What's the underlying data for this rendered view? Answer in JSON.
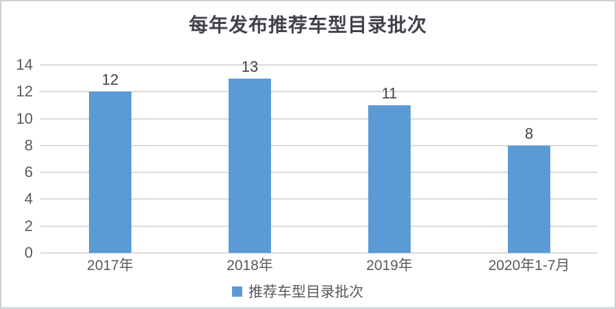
{
  "chart_data": {
    "type": "bar",
    "title": "每年发布推荐车型目录批次",
    "categories": [
      "2017年",
      "2018年",
      "2019年",
      "2020年1-7月"
    ],
    "series": [
      {
        "name": "推荐车型目录批次",
        "values": [
          12,
          13,
          11,
          8
        ]
      }
    ],
    "data_labels": [
      "12",
      "13",
      "11",
      "8"
    ],
    "xlabel": "",
    "ylabel": "",
    "ylim": [
      0,
      14
    ],
    "yticks": [
      0,
      2,
      4,
      6,
      8,
      10,
      12,
      14
    ],
    "grid": true,
    "legend_position": "bottom",
    "colors": {
      "bar": "#5b9bd5",
      "gridline": "#d9d9d9",
      "axis_text": "#595959",
      "title_text": "#41414a",
      "label_text": "#404040",
      "border": "#cfcfcf",
      "bottom_line": "#d6dae1",
      "background": "#ffffff"
    }
  }
}
